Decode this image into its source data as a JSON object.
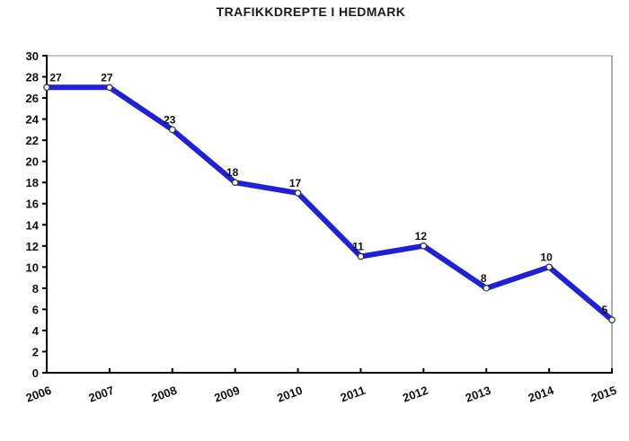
{
  "title": "TRAFIKKDREPTE I HEDMARK",
  "colors": {
    "line": "#2222cc",
    "marker_fill": "#ffffff",
    "marker_stroke": "#333333",
    "axis": "#000000",
    "border_top": "#8c8c8c",
    "border_right": "#5a5a5a",
    "text": "#111111",
    "background": "#ffffff"
  },
  "chart_data": {
    "type": "line",
    "title": "TRAFIKKDREPTE I HEDMARK",
    "categories": [
      "2006",
      "2007",
      "2008",
      "2009",
      "2010",
      "2011",
      "2012",
      "2013",
      "2014",
      "2015"
    ],
    "values": [
      27,
      27,
      23,
      18,
      17,
      11,
      12,
      8,
      10,
      5
    ],
    "series_name": "Trafikkdrepte",
    "xlabel": "",
    "ylabel": "",
    "ylim": [
      0,
      30
    ],
    "ytick_step": 2,
    "xtick_rotation_deg": -20,
    "grid": false,
    "legend": "none",
    "data_labels": true,
    "marker": "open-circle"
  }
}
